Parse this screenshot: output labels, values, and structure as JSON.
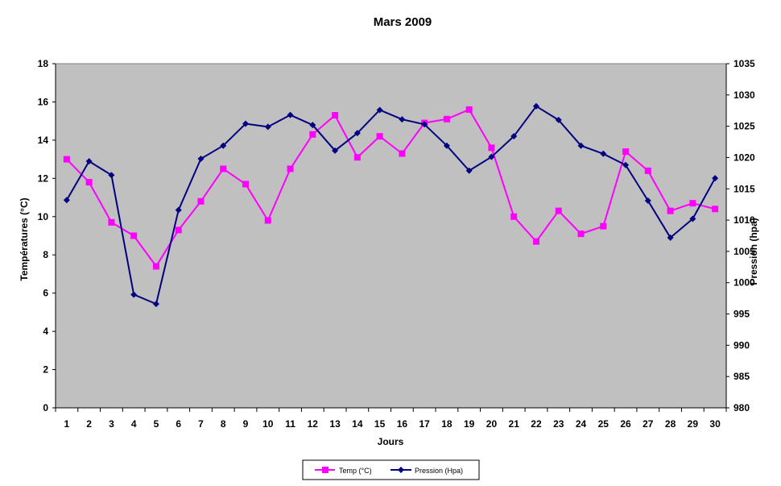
{
  "chart_data": {
    "type": "line",
    "title": "Mars 2009",
    "xlabel": "Jours",
    "ylabel_left": "Températures  (°C)",
    "ylabel_right": "Pression (hpa)",
    "x": [
      1,
      2,
      3,
      4,
      5,
      6,
      7,
      8,
      9,
      10,
      11,
      12,
      13,
      14,
      15,
      16,
      17,
      18,
      19,
      20,
      21,
      22,
      23,
      24,
      25,
      26,
      27,
      28,
      29,
      30
    ],
    "x_ticks": [
      "1",
      "2",
      "3",
      "4",
      "5",
      "6",
      "7",
      "8",
      "9",
      "10",
      "11",
      "12",
      "13",
      "14",
      "15",
      "16",
      "17",
      "18",
      "19",
      "20",
      "21",
      "22",
      "23",
      "24",
      "25",
      "26",
      "27",
      "28",
      "29",
      "30"
    ],
    "ylim_left": [
      0,
      18
    ],
    "ylim_right": [
      980,
      1035
    ],
    "y_ticks_left": [
      "0",
      "2",
      "4",
      "6",
      "8",
      "10",
      "12",
      "14",
      "16",
      "18"
    ],
    "y_ticks_right": [
      "980",
      "985",
      "990",
      "995",
      "1000",
      "1005",
      "1010",
      "1015",
      "1020",
      "1025",
      "1030",
      "1035"
    ],
    "plot_background": "#c0c0c0",
    "grid": false,
    "legend_position": "bottom",
    "series": [
      {
        "name": "Temp (°C)",
        "axis": "left",
        "color": "#ff00ff",
        "marker": "square",
        "values": [
          13.0,
          11.8,
          9.7,
          9.0,
          7.4,
          9.3,
          10.8,
          12.5,
          11.7,
          9.8,
          12.5,
          14.3,
          15.3,
          13.1,
          14.2,
          13.3,
          14.9,
          15.1,
          15.6,
          13.6,
          10.0,
          8.7,
          10.3,
          9.1,
          9.5,
          13.4,
          12.4,
          10.3,
          10.7,
          10.4
        ]
      },
      {
        "name": "Pression (Hpa)",
        "axis": "right",
        "color": "#000080",
        "marker": "diamond",
        "values": [
          1013.2,
          1019.4,
          1017.2,
          998.1,
          996.6,
          1011.6,
          1019.8,
          1021.9,
          1025.4,
          1024.9,
          1026.8,
          1025.2,
          1021.1,
          1023.9,
          1027.6,
          1026.1,
          1025.3,
          1021.9,
          1017.9,
          1020.1,
          1023.4,
          1028.2,
          1026.0,
          1021.9,
          1020.6,
          1018.8,
          1013.1,
          1007.2,
          1010.2,
          1016.7
        ]
      }
    ]
  }
}
